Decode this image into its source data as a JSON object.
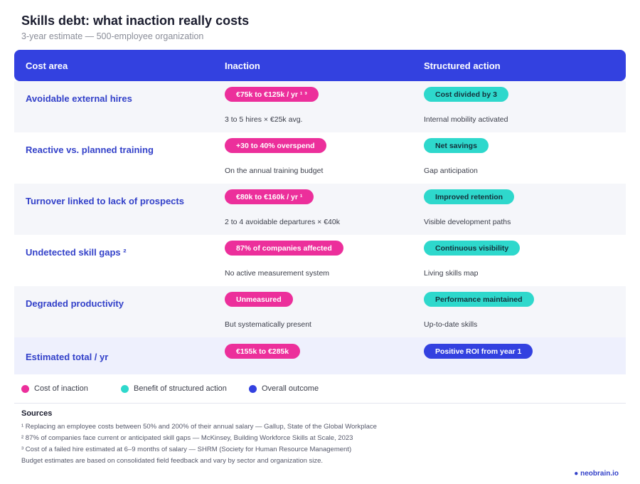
{
  "header": {
    "title": "Skills debt: what inaction really costs",
    "subtitle": "3-year estimate — 500-employee organization"
  },
  "table": {
    "columns": [
      "Cost area",
      "Inaction",
      "Structured action"
    ],
    "rows": [
      {
        "area": "Avoidable external hires",
        "inaction_badge": "€75k to €125k / yr ¹ ³",
        "inaction_note": "3 to 5 hires × €25k avg.",
        "action_badge": "Cost divided by 3",
        "action_note": "Internal mobility activated"
      },
      {
        "area": "Reactive vs. planned training",
        "inaction_badge": "+30 to 40% overspend",
        "inaction_note": "On the annual training budget",
        "action_badge": "Net savings",
        "action_note": "Gap anticipation"
      },
      {
        "area": "Turnover linked to lack of prospects",
        "inaction_badge": "€80k to €160k / yr ¹",
        "inaction_note": "2 to 4 avoidable departures × €40k",
        "action_badge": "Improved retention",
        "action_note": "Visible development paths"
      },
      {
        "area": "Undetected skill gaps ²",
        "inaction_badge": "87% of companies affected",
        "inaction_note": "No active measurement system",
        "action_badge": "Continuous visibility",
        "action_note": "Living skills map"
      },
      {
        "area": "Degraded productivity",
        "inaction_badge": "Unmeasured",
        "inaction_note": "But systematically present",
        "action_badge": "Performance maintained",
        "action_note": "Up-to-date skills"
      }
    ],
    "total": {
      "area": "Estimated total / yr",
      "inaction_badge": "€155k to €285k",
      "action_badge": "Positive ROI from year 1"
    }
  },
  "legend": [
    {
      "label": "Cost of inaction",
      "color": "#ec2f9b"
    },
    {
      "label": "Benefit of structured action",
      "color": "#2ed8cc"
    },
    {
      "label": "Overall outcome",
      "color": "#3341e0"
    }
  ],
  "sources": {
    "title": "Sources",
    "lines": [
      "¹ Replacing an employee costs between 50% and 200% of their annual salary — Gallup, State of the Global Workplace",
      "² 87% of companies face current or anticipated skill gaps — McKinsey, Building Workforce Skills at Scale, 2023",
      "³ Cost of a failed hire estimated at 6–9 months of salary — SHRM (Society for Human Resource Management)",
      "Budget estimates are based on consolidated field feedback and vary by sector and organization size."
    ]
  },
  "brand": "● neobrain.io"
}
